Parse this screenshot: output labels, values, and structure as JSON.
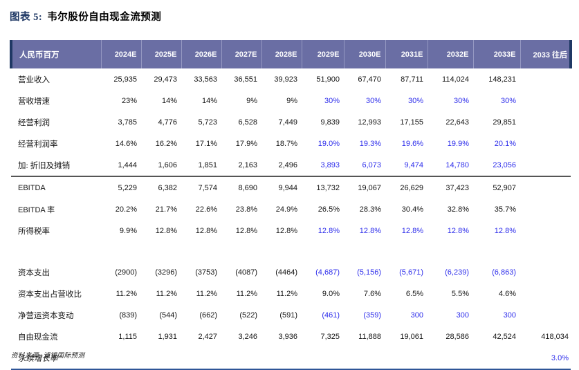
{
  "title": {
    "prefix": "图表 5:",
    "text": "韦尔股份自由现金流预测"
  },
  "table": {
    "unit_label": "人民币百万",
    "year_headers": [
      "2024E",
      "2025E",
      "2026E",
      "2027E",
      "2028E",
      "2029E",
      "2030E",
      "2031E",
      "2032E",
      "2033E",
      "2033 往后"
    ],
    "rows": [
      {
        "name": "revenue",
        "label": "营业收入",
        "values": [
          "25,935",
          "29,473",
          "33,563",
          "36,551",
          "39,923",
          "51,900",
          "67,470",
          "87,711",
          "114,024",
          "148,231",
          ""
        ],
        "blue": []
      },
      {
        "name": "revenue-growth",
        "label": "营收增速",
        "values": [
          "23%",
          "14%",
          "14%",
          "9%",
          "9%",
          "30%",
          "30%",
          "30%",
          "30%",
          "30%",
          ""
        ],
        "blue": [
          5,
          6,
          7,
          8,
          9
        ]
      },
      {
        "name": "operating-profit",
        "label": "经营利润",
        "values": [
          "3,785",
          "4,776",
          "5,723",
          "6,528",
          "7,449",
          "9,839",
          "12,993",
          "17,155",
          "22,643",
          "29,851",
          ""
        ],
        "blue": []
      },
      {
        "name": "operating-margin",
        "label": "经营利润率",
        "values": [
          "14.6%",
          "16.2%",
          "17.1%",
          "17.9%",
          "18.7%",
          "19.0%",
          "19.3%",
          "19.6%",
          "19.9%",
          "20.1%",
          ""
        ],
        "blue": [
          5,
          6,
          7,
          8,
          9
        ]
      },
      {
        "name": "add-depreciation-amortization",
        "label": "加: 折旧及摊销",
        "values": [
          "1,444",
          "1,606",
          "1,851",
          "2,163",
          "2,496",
          "3,893",
          "6,073",
          "9,474",
          "14,780",
          "23,056",
          ""
        ],
        "blue": [
          5,
          6,
          7,
          8,
          9
        ],
        "section_end": true
      },
      {
        "name": "ebitda",
        "label": "EBITDA",
        "latin": true,
        "values": [
          "5,229",
          "6,382",
          "7,574",
          "8,690",
          "9,944",
          "13,732",
          "19,067",
          "26,629",
          "37,423",
          "52,907",
          ""
        ],
        "blue": []
      },
      {
        "name": "ebitda-margin",
        "label": "EBITDA 率",
        "latin": true,
        "values": [
          "20.2%",
          "21.7%",
          "22.6%",
          "23.8%",
          "24.9%",
          "26.5%",
          "28.3%",
          "30.4%",
          "32.8%",
          "35.7%",
          ""
        ],
        "blue": []
      },
      {
        "name": "income-tax-rate",
        "label": "所得税率",
        "values": [
          "9.9%",
          "12.8%",
          "12.8%",
          "12.8%",
          "12.8%",
          "12.8%",
          "12.8%",
          "12.8%",
          "12.8%",
          "12.8%",
          ""
        ],
        "blue": [
          5,
          6,
          7,
          8,
          9
        ]
      },
      {
        "name": "spacer",
        "type": "spacer"
      },
      {
        "name": "capex",
        "label": "资本支出",
        "values": [
          "(2900)",
          "(3296)",
          "(3753)",
          "(4087)",
          "(4464)",
          "(4,687)",
          "(5,156)",
          "(5,671)",
          "(6,239)",
          "(6,863)",
          ""
        ],
        "blue": [
          5,
          6,
          7,
          8,
          9
        ]
      },
      {
        "name": "capex-to-revenue",
        "label": "资本支出占营收比",
        "values": [
          "11.2%",
          "11.2%",
          "11.2%",
          "11.2%",
          "11.2%",
          "9.0%",
          "7.6%",
          "6.5%",
          "5.5%",
          "4.6%",
          ""
        ],
        "blue": []
      },
      {
        "name": "net-working-capital-change",
        "label": "净营运资本变动",
        "values": [
          "(839)",
          "(544)",
          "(662)",
          "(522)",
          "(591)",
          "(461)",
          "(359)",
          "300",
          "300",
          "300",
          ""
        ],
        "blue": [
          5,
          6,
          7,
          8,
          9
        ]
      },
      {
        "name": "free-cash-flow",
        "label": "自由现金流",
        "values": [
          "1,115",
          "1,931",
          "2,427",
          "3,246",
          "3,936",
          "7,325",
          "11,888",
          "19,061",
          "28,586",
          "42,524",
          "418,034"
        ],
        "blue": []
      },
      {
        "name": "terminal-growth-rate",
        "label": "永续增长率",
        "italic": true,
        "values": [
          "",
          "",
          "",
          "",
          "",
          "",
          "",
          "",
          "",
          "",
          "3.0%"
        ],
        "blue": [
          10
        ],
        "table_end": true
      }
    ]
  },
  "footer": {
    "source_label": "资料来源: 浦银国际预测"
  },
  "colors": {
    "header_bg": "#6A6EA4",
    "header_separator": "#9598C2",
    "accent_navy": "#1F3864",
    "forecast_blue": "#2D2DEB",
    "section_line": "#555555",
    "bottom_line": "#2F5597"
  }
}
